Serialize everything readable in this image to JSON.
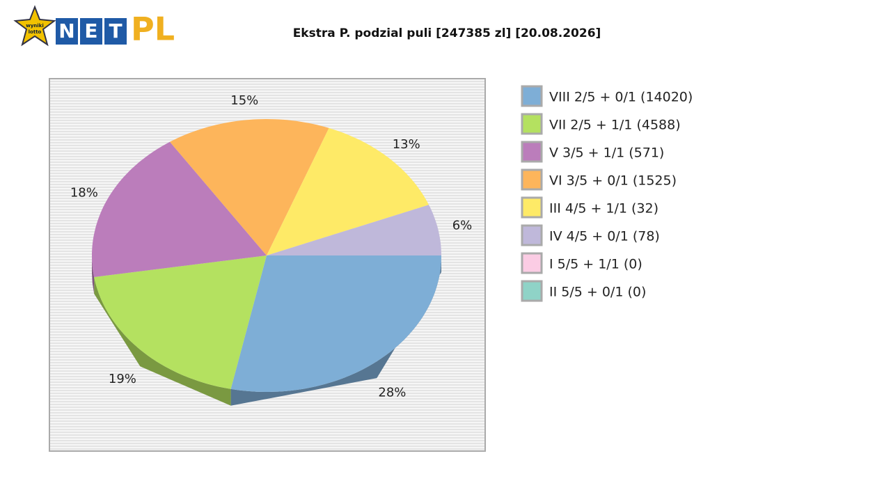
{
  "logo": {
    "badge": [
      "wyniki",
      "lotto"
    ],
    "letters": [
      "N",
      "E",
      "T"
    ],
    "suffix": "PL"
  },
  "chart_data": {
    "type": "pie",
    "title": "Ekstra P. podzial puli [247385 zl] [20.08.2026]",
    "categories": [
      "VIII 2/5 + 0/1 (14020)",
      "VII 2/5 + 1/1 (4588)",
      "V 3/5 + 1/1 (571)",
      "VI 3/5 + 0/1 (1525)",
      "III 4/5 + 1/1 (32)",
      "IV 4/5 + 0/1 (78)",
      "I 5/5 + 1/1 (0)",
      "II 5/5 + 0/1 (0)"
    ],
    "values": [
      28,
      19,
      18,
      15,
      13,
      6,
      0,
      0
    ],
    "value_labels": [
      "28%",
      "19%",
      "18%",
      "15%",
      "13%",
      "6%",
      null,
      null
    ],
    "colors": [
      "#7eaed6",
      "#b4e160",
      "#bb7dbb",
      "#fdb55b",
      "#feea67",
      "#bfb8da",
      "#fbcce4",
      "#8fd3c7"
    ]
  }
}
